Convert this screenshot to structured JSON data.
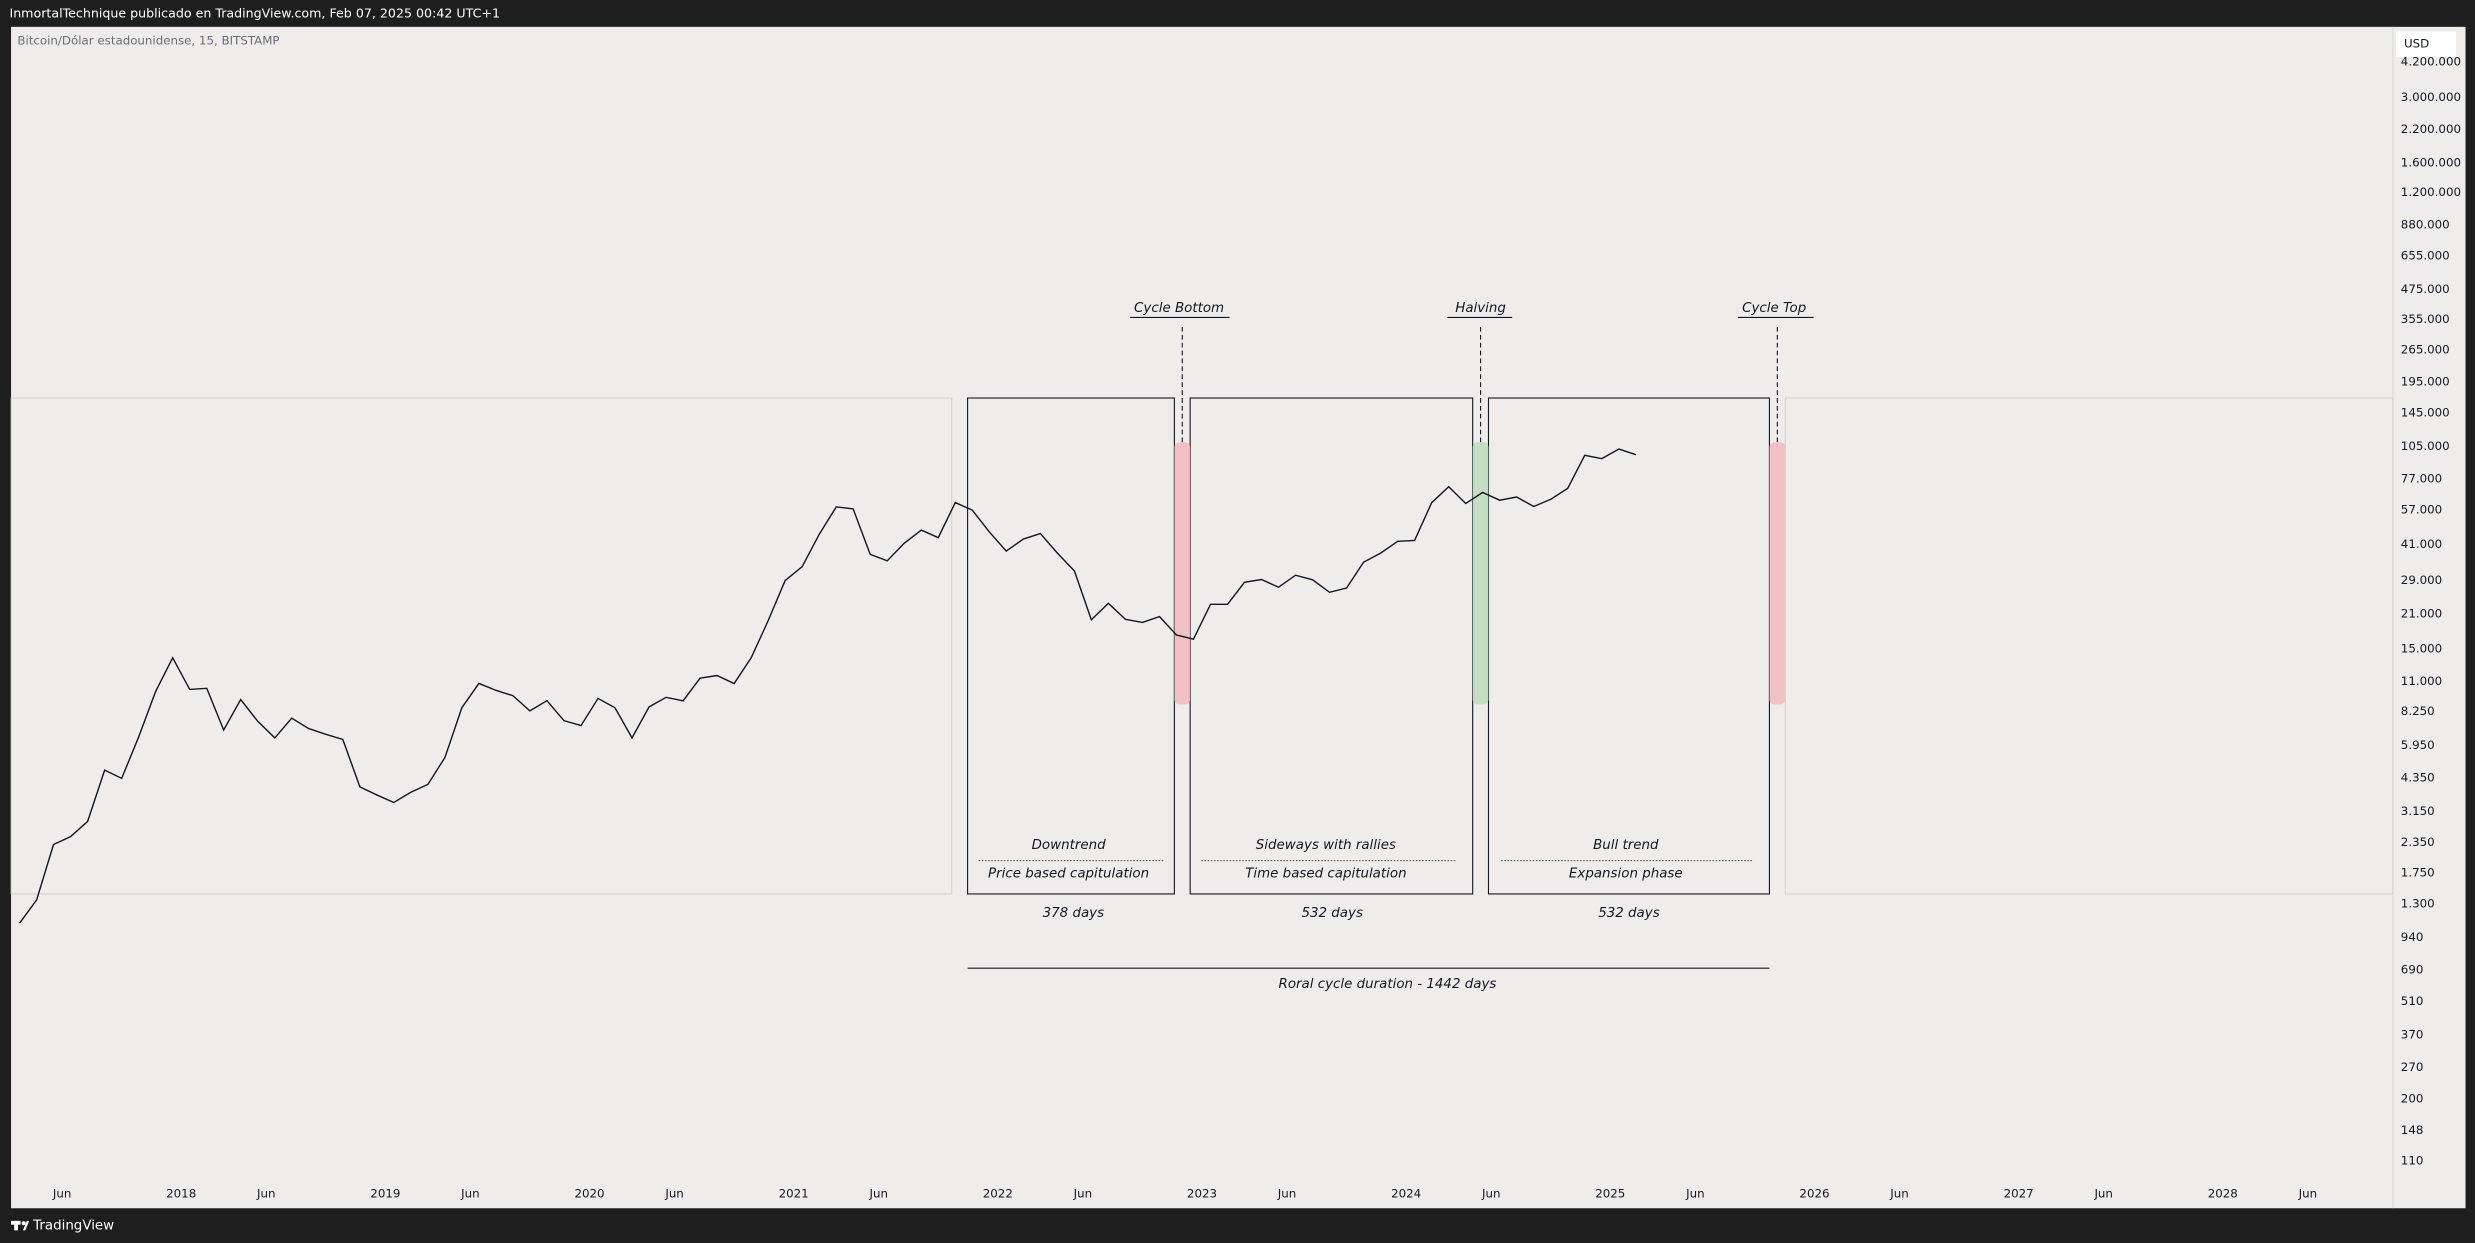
{
  "header": {
    "text": "InmortalTechnique publicado en TradingView.com, Feb 07, 2025 00:42 UTC+1"
  },
  "footer": {
    "brand": "TradingView"
  },
  "chart_data": {
    "type": "line",
    "title": "Bitcoin/Dólar estadounidense, 15, BITSTAMP",
    "currency": "USD",
    "log_scale": true,
    "grid": false,
    "color": "#131722",
    "x": [
      "2017-03",
      "2017-04",
      "2017-05",
      "2017-06",
      "2017-07",
      "2017-08",
      "2017-09",
      "2017-10",
      "2017-11",
      "2017-12",
      "2018-01",
      "2018-02",
      "2018-03",
      "2018-04",
      "2018-05",
      "2018-06",
      "2018-07",
      "2018-08",
      "2018-09",
      "2018-10",
      "2018-11",
      "2018-12",
      "2019-01",
      "2019-02",
      "2019-03",
      "2019-04",
      "2019-05",
      "2019-06",
      "2019-07",
      "2019-08",
      "2019-09",
      "2019-10",
      "2019-11",
      "2019-12",
      "2020-01",
      "2020-02",
      "2020-03",
      "2020-04",
      "2020-05",
      "2020-06",
      "2020-07",
      "2020-08",
      "2020-09",
      "2020-10",
      "2020-11",
      "2020-12",
      "2021-01",
      "2021-02",
      "2021-03",
      "2021-04",
      "2021-05",
      "2021-06",
      "2021-07",
      "2021-08",
      "2021-09",
      "2021-10",
      "2021-11",
      "2021-12",
      "2022-01",
      "2022-02",
      "2022-03",
      "2022-04",
      "2022-05",
      "2022-06",
      "2022-07",
      "2022-08",
      "2022-09",
      "2022-10",
      "2022-11",
      "2022-12",
      "2023-01",
      "2023-02",
      "2023-03",
      "2023-04",
      "2023-05",
      "2023-06",
      "2023-07",
      "2023-08",
      "2023-09",
      "2023-10",
      "2023-11",
      "2023-12",
      "2024-01",
      "2024-02",
      "2024-03",
      "2024-04",
      "2024-05",
      "2024-06",
      "2024-07",
      "2024-08",
      "2024-09",
      "2024-10",
      "2024-11",
      "2024-12",
      "2025-01",
      "2025-02"
    ],
    "values": [
      1080,
      1350,
      2300,
      2480,
      2870,
      4700,
      4340,
      6450,
      10000,
      13800,
      10200,
      10300,
      6900,
      9250,
      7500,
      6400,
      7730,
      7000,
      6630,
      6300,
      4000,
      3700,
      3440,
      3800,
      4100,
      5300,
      8550,
      10800,
      10100,
      9600,
      8300,
      9150,
      7550,
      7200,
      9350,
      8550,
      6400,
      8620,
      9450,
      9140,
      11350,
      11650,
      10780,
      13800,
      19700,
      29000,
      33100,
      45200,
      58800,
      57700,
      37300,
      35000,
      41500,
      47100,
      43800,
      61300,
      57000,
      46200,
      38500,
      43200,
      45500,
      37700,
      31800,
      19900,
      23300,
      20000,
      19400,
      20500,
      17200,
      16500,
      23100,
      23100,
      28500,
      29300,
      27200,
      30500,
      29200,
      25900,
      27000,
      34600,
      37700,
      42300,
      42600,
      61200,
      71300,
      60700,
      67500,
      62700,
      64600,
      59000,
      63300,
      70200,
      96400,
      93400,
      102400,
      97000
    ],
    "xlim": [
      "2017-03",
      "2028-11"
    ],
    "xticks": [
      {
        "value": "2017-06",
        "label": "Jun"
      },
      {
        "value": "2018-01",
        "label": "2018"
      },
      {
        "value": "2018-06",
        "label": "Jun"
      },
      {
        "value": "2019-01",
        "label": "2019"
      },
      {
        "value": "2019-06",
        "label": "Jun"
      },
      {
        "value": "2020-01",
        "label": "2020"
      },
      {
        "value": "2020-06",
        "label": "Jun"
      },
      {
        "value": "2021-01",
        "label": "2021"
      },
      {
        "value": "2021-06",
        "label": "Jun"
      },
      {
        "value": "2022-01",
        "label": "2022"
      },
      {
        "value": "2022-06",
        "label": "Jun"
      },
      {
        "value": "2023-01",
        "label": "2023"
      },
      {
        "value": "2023-06",
        "label": "Jun"
      },
      {
        "value": "2024-01",
        "label": "2024"
      },
      {
        "value": "2024-06",
        "label": "Jun"
      },
      {
        "value": "2025-01",
        "label": "2025"
      },
      {
        "value": "2025-06",
        "label": "Jun"
      },
      {
        "value": "2026-01",
        "label": "2026"
      },
      {
        "value": "2026-06",
        "label": "Jun"
      },
      {
        "value": "2027-01",
        "label": "2027"
      },
      {
        "value": "2027-06",
        "label": "Jun"
      },
      {
        "value": "2028-01",
        "label": "2028"
      },
      {
        "value": "2028-06",
        "label": "Jun"
      }
    ],
    "ylim": [
      70,
      5900000
    ],
    "yticks": [
      {
        "value": 4200000,
        "label": "4.200.000"
      },
      {
        "value": 3000000,
        "label": "3.000.000"
      },
      {
        "value": 2200000,
        "label": "2.200.000"
      },
      {
        "value": 1600000,
        "label": "1.600.000"
      },
      {
        "value": 1200000,
        "label": "1.200.000"
      },
      {
        "value": 880000,
        "label": "880.000"
      },
      {
        "value": 655000,
        "label": "655.000"
      },
      {
        "value": 475000,
        "label": "475.000"
      },
      {
        "value": 355000,
        "label": "355.000"
      },
      {
        "value": 265000,
        "label": "265.000"
      },
      {
        "value": 195000,
        "label": "195.000"
      },
      {
        "value": 145000,
        "label": "145.000"
      },
      {
        "value": 105000,
        "label": "105.000"
      },
      {
        "value": 77000,
        "label": "77.000"
      },
      {
        "value": 57000,
        "label": "57.000"
      },
      {
        "value": 41000,
        "label": "41.000"
      },
      {
        "value": 29000,
        "label": "29.000"
      },
      {
        "value": 21000,
        "label": "21.000"
      },
      {
        "value": 15000,
        "label": "15.000"
      },
      {
        "value": 11000,
        "label": "11.000"
      },
      {
        "value": 8250,
        "label": "8.250"
      },
      {
        "value": 5950,
        "label": "5.950"
      },
      {
        "value": 4350,
        "label": "4.350"
      },
      {
        "value": 3150,
        "label": "3.150"
      },
      {
        "value": 2350,
        "label": "2.350"
      },
      {
        "value": 1750,
        "label": "1.750"
      },
      {
        "value": 1300,
        "label": "1.300"
      },
      940,
      690,
      510,
      370,
      270,
      200,
      148,
      110
    ],
    "annotations": [
      "Cycle Bottom",
      "Halving",
      "Cycle Top",
      "Downtrend",
      "Price based capitulation",
      "378 days",
      "Sideways with rallies",
      "Time based capitulation",
      "532 days",
      "Bull trend",
      "Expansion phase",
      "532 days",
      "Roral cycle duration - 1442 days"
    ]
  }
}
